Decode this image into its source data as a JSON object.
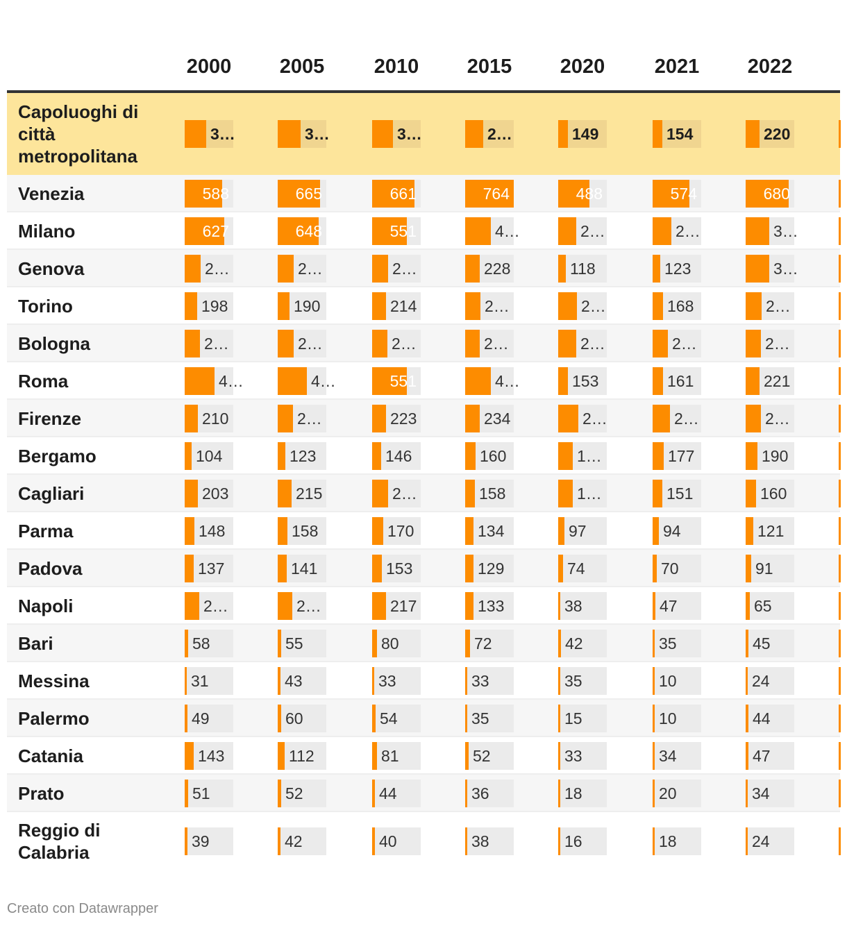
{
  "chart_data": {
    "type": "table",
    "columns": [
      "2000",
      "2005",
      "2010",
      "2015",
      "2020",
      "2021",
      "2022"
    ],
    "rows": [
      {
        "name": "Capoluoghi di città metropolitana",
        "labels": [
          "3…",
          "3…",
          "3…",
          "2…",
          "149",
          "154",
          "220"
        ],
        "values": [
          335,
          360,
          330,
          280,
          149,
          154,
          220
        ],
        "highlight": true
      },
      {
        "name": "Venezia",
        "labels": [
          "588",
          "665",
          "661",
          "764",
          "488",
          "574",
          "680"
        ],
        "values": [
          588,
          665,
          661,
          764,
          488,
          574,
          680
        ]
      },
      {
        "name": "Milano",
        "labels": [
          "627",
          "648",
          "551",
          "4…",
          "2…",
          "2…",
          "3…"
        ],
        "values": [
          627,
          648,
          551,
          400,
          280,
          290,
          370
        ]
      },
      {
        "name": "Genova",
        "labels": [
          "2…",
          "2…",
          "2…",
          "228",
          "118",
          "123",
          "3…"
        ],
        "values": [
          250,
          250,
          250,
          228,
          118,
          123,
          370
        ]
      },
      {
        "name": "Torino",
        "labels": [
          "198",
          "190",
          "214",
          "2…",
          "2…",
          "168",
          "2…"
        ],
        "values": [
          198,
          190,
          214,
          240,
          300,
          168,
          250
        ]
      },
      {
        "name": "Bologna",
        "labels": [
          "2…",
          "2…",
          "2…",
          "2…",
          "2…",
          "2…",
          "2…"
        ],
        "values": [
          240,
          250,
          240,
          230,
          280,
          240,
          240
        ]
      },
      {
        "name": "Roma",
        "labels": [
          "4…",
          "4…",
          "551",
          "4…",
          "153",
          "161",
          "221"
        ],
        "values": [
          470,
          460,
          551,
          400,
          153,
          161,
          221
        ]
      },
      {
        "name": "Firenze",
        "labels": [
          "210",
          "2…",
          "223",
          "234",
          "2…",
          "2…",
          "2…"
        ],
        "values": [
          210,
          240,
          223,
          234,
          320,
          270,
          240
        ]
      },
      {
        "name": "Bergamo",
        "labels": [
          "104",
          "123",
          "146",
          "160",
          "1…",
          "177",
          "190"
        ],
        "values": [
          104,
          123,
          146,
          160,
          230,
          177,
          190
        ]
      },
      {
        "name": "Cagliari",
        "labels": [
          "203",
          "215",
          "2…",
          "158",
          "1…",
          "151",
          "160"
        ],
        "values": [
          203,
          215,
          250,
          158,
          230,
          151,
          160
        ]
      },
      {
        "name": "Parma",
        "labels": [
          "148",
          "158",
          "170",
          "134",
          "97",
          "94",
          "121"
        ],
        "values": [
          148,
          158,
          170,
          134,
          97,
          94,
          121
        ]
      },
      {
        "name": "Padova",
        "labels": [
          "137",
          "141",
          "153",
          "129",
          "74",
          "70",
          "91"
        ],
        "values": [
          137,
          141,
          153,
          129,
          74,
          70,
          91
        ]
      },
      {
        "name": "Napoli",
        "labels": [
          "2…",
          "2…",
          "217",
          "133",
          "38",
          "47",
          "65"
        ],
        "values": [
          230,
          230,
          217,
          133,
          38,
          47,
          65
        ]
      },
      {
        "name": "Bari",
        "labels": [
          "58",
          "55",
          "80",
          "72",
          "42",
          "35",
          "45"
        ],
        "values": [
          58,
          55,
          80,
          72,
          42,
          35,
          45
        ]
      },
      {
        "name": "Messina",
        "labels": [
          "31",
          "43",
          "33",
          "33",
          "35",
          "10",
          "24"
        ],
        "values": [
          31,
          43,
          33,
          33,
          35,
          10,
          24
        ]
      },
      {
        "name": "Palermo",
        "labels": [
          "49",
          "60",
          "54",
          "35",
          "15",
          "10",
          "44"
        ],
        "values": [
          49,
          60,
          54,
          35,
          15,
          10,
          44
        ]
      },
      {
        "name": "Catania",
        "labels": [
          "143",
          "112",
          "81",
          "52",
          "33",
          "34",
          "47"
        ],
        "values": [
          143,
          112,
          81,
          52,
          33,
          34,
          47
        ]
      },
      {
        "name": "Prato",
        "labels": [
          "51",
          "52",
          "44",
          "36",
          "18",
          "20",
          "34"
        ],
        "values": [
          51,
          52,
          44,
          36,
          18,
          20,
          34
        ]
      },
      {
        "name": "Reggio di Calabria",
        "labels": [
          "39",
          "42",
          "40",
          "38",
          "16",
          "18",
          "24"
        ],
        "values": [
          39,
          42,
          40,
          38,
          16,
          18,
          24
        ]
      }
    ],
    "max_value": 764,
    "bar_color": "#fd8c00",
    "track_color": "#ebebeb",
    "highlight_color": "#fde59b"
  },
  "footer": {
    "credit": "Creato con Datawrapper"
  }
}
